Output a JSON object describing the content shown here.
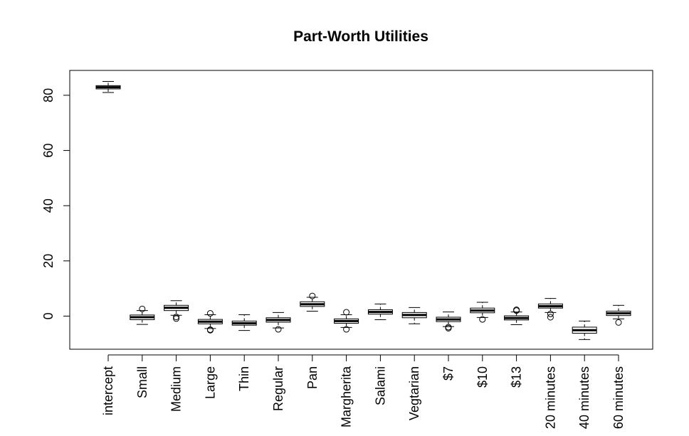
{
  "chart_data": {
    "type": "boxplot",
    "title": "Part-Worth Utilities",
    "xlabel": "",
    "ylabel": "",
    "ylim": [
      -12,
      89
    ],
    "yticks": [
      0,
      20,
      40,
      60,
      80
    ],
    "categories": [
      "intercept",
      "Small",
      "Medium",
      "Large",
      "Thin",
      "Regular",
      "Pan",
      "Margherita",
      "Salami",
      "Vegtarian",
      "$7",
      "$10",
      "$13",
      "20 minutes",
      "40 minutes",
      "60 minutes"
    ],
    "boxes": [
      {
        "min": 81.0,
        "q1": 82.3,
        "median": 82.9,
        "q3": 83.5,
        "max": 85.0,
        "outliers": []
      },
      {
        "min": -3.0,
        "q1": -1.3,
        "median": -0.4,
        "q3": 0.4,
        "max": 2.0,
        "outliers": [
          2.6
        ]
      },
      {
        "min": 0.3,
        "q1": 2.0,
        "median": 3.0,
        "q3": 3.9,
        "max": 5.6,
        "outliers": [
          -0.3,
          -0.9
        ]
      },
      {
        "min": -4.5,
        "q1": -2.8,
        "median": -2.0,
        "q3": -1.2,
        "max": 0.5,
        "outliers": [
          1.0,
          -4.9,
          -5.1
        ]
      },
      {
        "min": -5.2,
        "q1": -3.3,
        "median": -2.6,
        "q3": -1.8,
        "max": 0.5,
        "outliers": []
      },
      {
        "min": -4.3,
        "q1": -2.2,
        "median": -1.4,
        "q3": -0.6,
        "max": 1.3,
        "outliers": [
          -4.8
        ]
      },
      {
        "min": 1.8,
        "q1": 3.5,
        "median": 4.3,
        "q3": 5.2,
        "max": 6.8,
        "outliers": [
          7.3
        ]
      },
      {
        "min": -4.1,
        "q1": -2.6,
        "median": -1.8,
        "q3": -1.0,
        "max": 0.5,
        "outliers": [
          1.4,
          -4.8
        ]
      },
      {
        "min": -1.3,
        "q1": 0.7,
        "median": 1.5,
        "q3": 2.3,
        "max": 4.4,
        "outliers": []
      },
      {
        "min": -2.8,
        "q1": -0.6,
        "median": 0.4,
        "q3": 1.3,
        "max": 3.1,
        "outliers": []
      },
      {
        "min": -3.8,
        "q1": -2.0,
        "median": -1.2,
        "q3": -0.4,
        "max": 1.5,
        "outliers": [
          -4.0,
          -4.4
        ]
      },
      {
        "min": -0.5,
        "q1": 1.2,
        "median": 2.0,
        "q3": 2.9,
        "max": 5.0,
        "outliers": [
          -1.2
        ]
      },
      {
        "min": -3.1,
        "q1": -1.4,
        "median": -0.7,
        "q3": 0.1,
        "max": 1.5,
        "outliers": [
          2.0,
          2.3
        ]
      },
      {
        "min": 1.3,
        "q1": 2.9,
        "median": 3.6,
        "q3": 4.4,
        "max": 6.4,
        "outliers": [
          0.8,
          -0.4
        ]
      },
      {
        "min": -8.5,
        "q1": -6.2,
        "median": -5.1,
        "q3": -4.0,
        "max": -1.8,
        "outliers": []
      },
      {
        "min": -1.0,
        "q1": 0.2,
        "median": 1.0,
        "q3": 1.8,
        "max": 3.9,
        "outliers": [
          -2.3
        ]
      }
    ]
  }
}
